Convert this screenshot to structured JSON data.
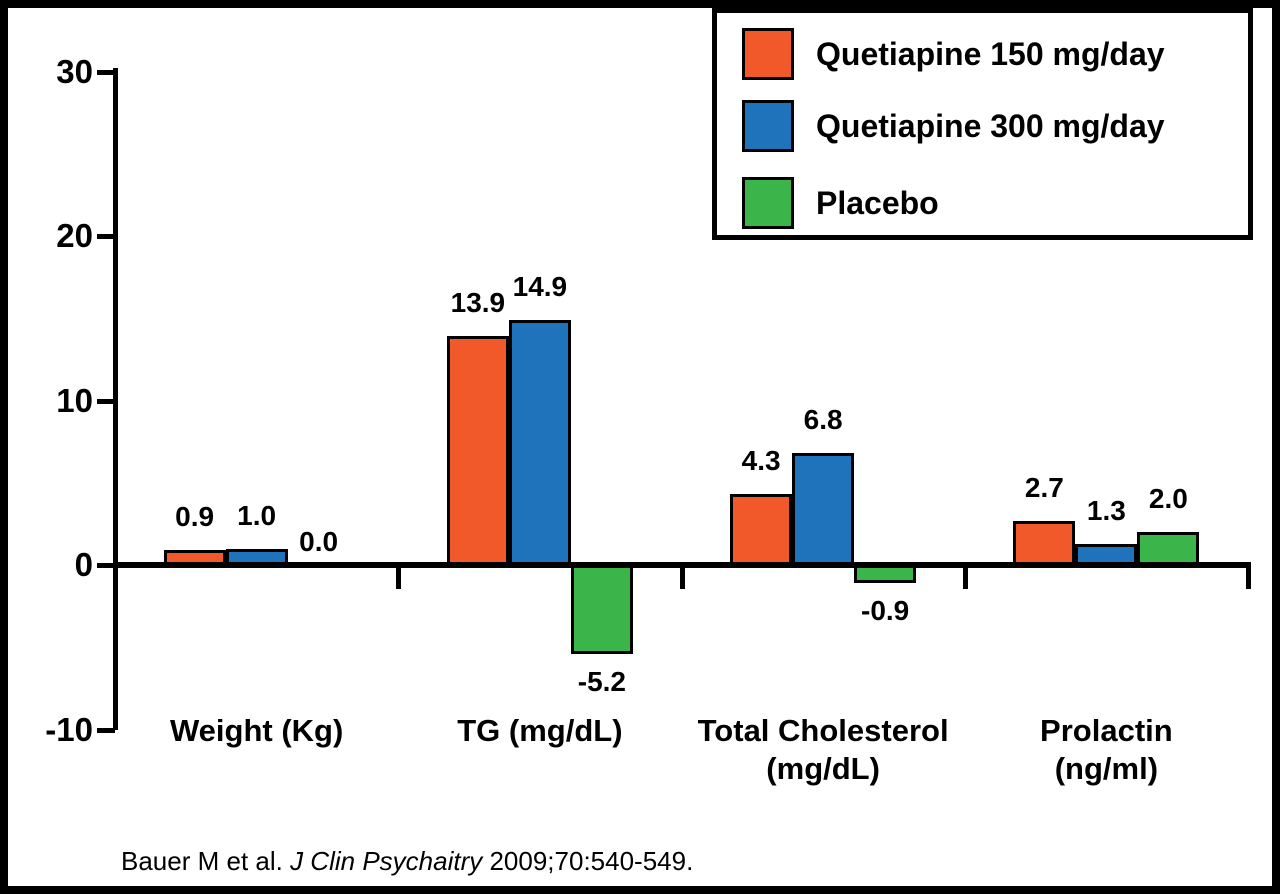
{
  "figure": {
    "citation": {
      "prefix": "Bauer M et al. ",
      "journal": "J Clin Psychaitry",
      "suffix": " 2009;70:540-549."
    }
  },
  "chart_data": {
    "type": "bar",
    "categories": [
      "Weight (Kg)",
      "TG (mg/dL)",
      "Total Cholesterol (mg/dL)",
      "Prolactin (ng/ml)"
    ],
    "category_lines": [
      [
        "Weight (Kg)"
      ],
      [
        "TG (mg/dL)"
      ],
      [
        "Total Cholesterol",
        "(mg/dL)"
      ],
      [
        "Prolactin",
        "(ng/ml)"
      ]
    ],
    "series": [
      {
        "name": "Quetiapine 150 mg/day",
        "color": "#F1592A",
        "values": [
          0.9,
          13.9,
          4.3,
          2.7
        ]
      },
      {
        "name": "Quetiapine 300 mg/day",
        "color": "#1E73BB",
        "values": [
          1.0,
          14.9,
          6.8,
          1.3
        ]
      },
      {
        "name": "Placebo",
        "color": "#3BB54A",
        "values": [
          0.0,
          -5.2,
          -0.9,
          2.0
        ]
      }
    ],
    "title": "",
    "xlabel": "",
    "ylabel": "",
    "ylim": [
      -10,
      30
    ],
    "yticks": [
      30,
      20,
      10,
      0,
      -10
    ],
    "grid": false,
    "legend_position": "top-right",
    "axis_color": "#000000",
    "background_color": "#FFFFFF"
  }
}
